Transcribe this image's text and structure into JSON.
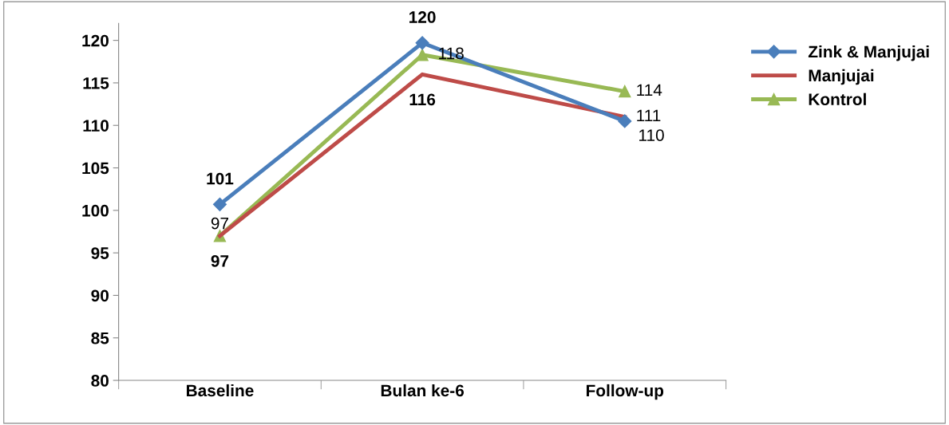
{
  "chart_data": {
    "type": "line",
    "categories": [
      "Baseline",
      "Bulan ke-6",
      "Follow-up"
    ],
    "series": [
      {
        "name": "Zink & Manjujai",
        "color": "#4a7ebb",
        "marker": "diamond",
        "values": [
          100.7,
          119.7,
          110.5
        ],
        "value_labels": [
          "101",
          "120",
          "110"
        ]
      },
      {
        "name": "Manjujai",
        "color": "#be4b48",
        "marker": "none",
        "values": [
          97,
          116,
          111
        ],
        "value_labels": [
          "97",
          "116",
          "111"
        ]
      },
      {
        "name": "Kontrol",
        "color": "#98b954",
        "marker": "triangle",
        "values": [
          97,
          118.3,
          114
        ],
        "value_labels": [
          "97",
          "118",
          "114"
        ]
      }
    ],
    "ylim": [
      80,
      122
    ],
    "yticks": [
      80,
      85,
      90,
      95,
      100,
      105,
      110,
      115,
      120
    ],
    "grid": false,
    "legend": "right"
  }
}
